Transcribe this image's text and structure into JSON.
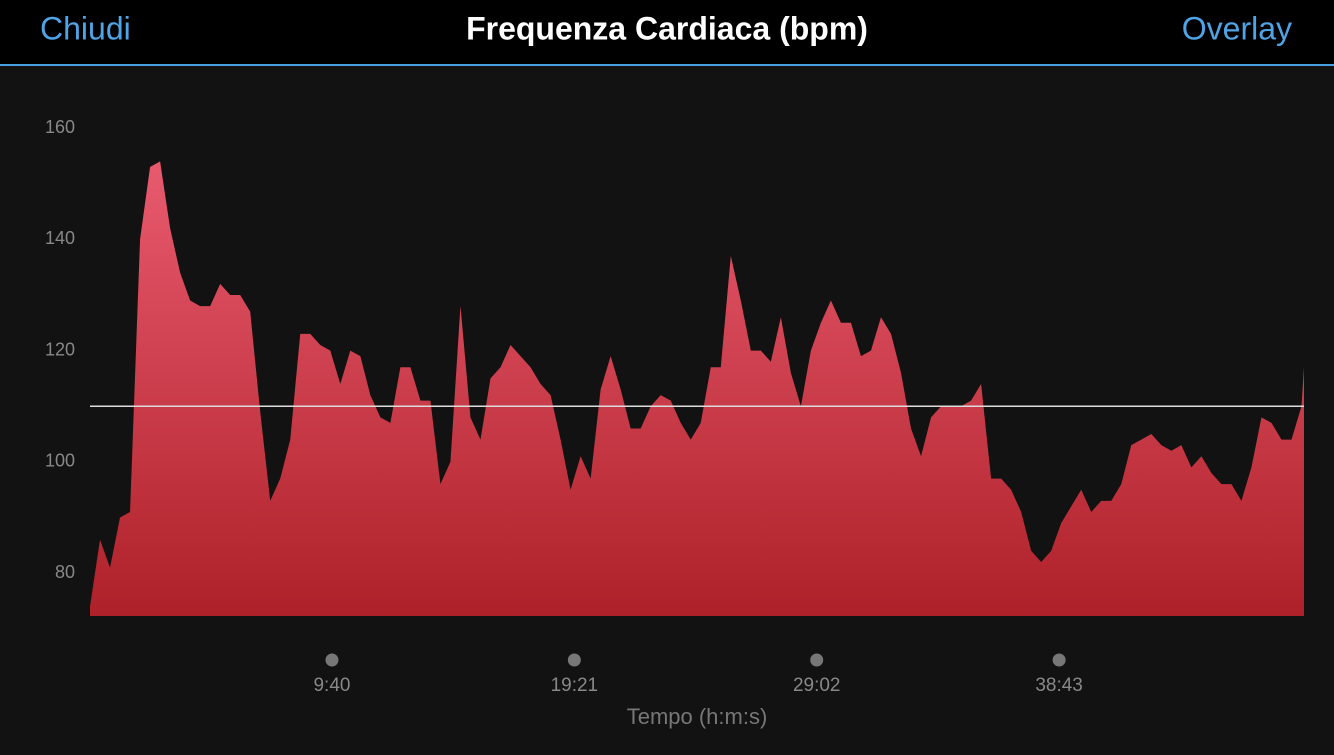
{
  "nav": {
    "left_button": "Chiudi",
    "right_button": "Overlay"
  },
  "chart_data": {
    "type": "area",
    "title": "Frequenza Cardiaca (bpm)",
    "x_label": "Tempo (h:m:s)",
    "x": [
      0,
      24,
      48,
      72,
      96,
      120,
      144,
      168,
      192,
      216,
      240,
      264,
      288,
      312,
      336,
      360,
      384,
      408,
      432,
      456,
      480,
      504,
      528,
      552,
      576,
      600,
      624,
      648,
      672,
      696,
      720,
      744,
      768,
      792,
      816,
      840,
      864,
      888,
      912,
      936,
      960,
      984,
      1008,
      1032,
      1056,
      1080,
      1104,
      1128,
      1152,
      1176,
      1200,
      1224,
      1248,
      1272,
      1296,
      1320,
      1344,
      1368,
      1392,
      1416,
      1440,
      1464,
      1488,
      1512,
      1536,
      1560,
      1584,
      1608,
      1632,
      1656,
      1680,
      1704,
      1728,
      1752,
      1776,
      1800,
      1824,
      1848,
      1872,
      1896,
      1920,
      1944,
      1968,
      1992,
      2016,
      2040,
      2064,
      2088,
      2112,
      2136,
      2160,
      2184,
      2208,
      2232,
      2256,
      2280,
      2304,
      2328,
      2352,
      2376,
      2400,
      2424,
      2448,
      2472,
      2496,
      2520,
      2544,
      2568,
      2592,
      2616,
      2640,
      2664,
      2688,
      2712,
      2736,
      2760,
      2784,
      2808,
      2832,
      2856,
      2880,
      2904,
      2910
    ],
    "values": [
      74,
      86,
      81,
      90,
      91,
      140,
      153,
      154,
      142,
      134,
      129,
      128,
      128,
      132,
      130,
      130,
      127,
      109,
      93,
      97,
      104,
      123,
      123,
      121,
      120,
      114,
      120,
      119,
      112,
      108,
      107,
      117,
      117,
      111,
      111,
      96,
      100,
      128,
      108,
      104,
      115,
      117,
      121,
      119,
      117,
      114,
      112,
      104,
      95,
      101,
      97,
      113,
      119,
      113,
      106,
      106,
      110,
      112,
      111,
      107,
      104,
      107,
      117,
      117,
      137,
      129,
      120,
      120,
      118,
      126,
      116,
      110,
      120,
      125,
      129,
      125,
      125,
      119,
      120,
      126,
      123,
      116,
      106,
      101,
      108,
      110,
      110,
      110,
      111,
      114,
      97,
      97,
      95,
      91,
      84,
      82,
      84,
      89,
      92,
      95,
      91,
      93,
      93,
      96,
      103,
      104,
      105,
      103,
      102,
      103,
      99,
      101,
      98,
      96,
      96,
      93,
      99,
      108,
      107,
      104,
      104,
      110,
      117
    ],
    "gradient": [
      "#e85a6e",
      "#ae2129"
    ],
    "reference_line": 110,
    "reference_color": "#dddddd",
    "xlim": [
      0,
      2910
    ],
    "ylim": [
      72.3,
      168
    ],
    "xticks": [
      {
        "value": 580,
        "label": "9:40"
      },
      {
        "value": 1161,
        "label": "19:21"
      },
      {
        "value": 1742,
        "label": "29:02"
      },
      {
        "value": 2323,
        "label": "38:43"
      }
    ],
    "yticks": [
      80,
      100,
      120,
      140,
      160
    ]
  }
}
